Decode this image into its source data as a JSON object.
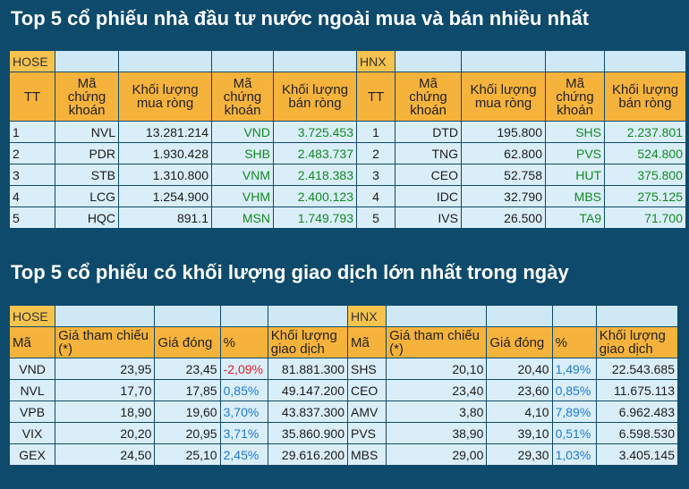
{
  "title1": "Top 5 cổ phiếu nhà đầu tư nước ngoài mua và bán nhiều nhất",
  "title2": "Top 5 cổ phiếu có khối lượng giao dịch lớn nhất trong ngày",
  "t1": {
    "exch_hose": "HOSE",
    "exch_hnx": "HNX",
    "headers": [
      "TT",
      "Mã chứng khoán",
      "Khối lượng mua ròng",
      "Mã chứng khoán",
      "Khối lượng bán ròng"
    ],
    "hose": [
      {
        "tt": "1",
        "buy_code": "NVL",
        "buy_vol": "13.281.214",
        "sell_code": "VND",
        "sell_vol": "3.725.453"
      },
      {
        "tt": "2",
        "buy_code": "PDR",
        "buy_vol": "1.930.428",
        "sell_code": "SHB",
        "sell_vol": "2.483.737"
      },
      {
        "tt": "3",
        "buy_code": "STB",
        "buy_vol": "1.310.800",
        "sell_code": "VNM",
        "sell_vol": "2.418.383"
      },
      {
        "tt": "4",
        "buy_code": "LCG",
        "buy_vol": "1.254.900",
        "sell_code": "VHM",
        "sell_vol": "2.400.123"
      },
      {
        "tt": "5",
        "buy_code": "HQC",
        "buy_vol": "891.1",
        "sell_code": "MSN",
        "sell_vol": "1.749.793"
      }
    ],
    "hnx": [
      {
        "tt": "1",
        "buy_code": "DTD",
        "buy_vol": "195.800",
        "sell_code": "SHS",
        "sell_vol": "2.237.801"
      },
      {
        "tt": "2",
        "buy_code": "TNG",
        "buy_vol": "62.800",
        "sell_code": "PVS",
        "sell_vol": "524.800"
      },
      {
        "tt": "3",
        "buy_code": "CEO",
        "buy_vol": "52.758",
        "sell_code": "HUT",
        "sell_vol": "375.800"
      },
      {
        "tt": "4",
        "buy_code": "IDC",
        "buy_vol": "32.790",
        "sell_code": "MBS",
        "sell_vol": "275.125"
      },
      {
        "tt": "5",
        "buy_code": "IVS",
        "buy_vol": "26.500",
        "sell_code": "TA9",
        "sell_vol": "71.700"
      }
    ]
  },
  "t2": {
    "exch_hose": "HOSE",
    "exch_hnx": "HNX",
    "headers": [
      "Mã",
      "Giá tham chiếu (*)",
      "Giá đóng",
      "%",
      "Khối lượng giao dịch"
    ],
    "hose": [
      {
        "code": "VND",
        "ref": "23,95",
        "close": "23,45",
        "pct": "-2,09%",
        "vol": "81.881.300"
      },
      {
        "code": "NVL",
        "ref": "17,70",
        "close": "17,85",
        "pct": "0,85%",
        "vol": "49.147.200"
      },
      {
        "code": "VPB",
        "ref": "18,90",
        "close": "19,60",
        "pct": "3,70%",
        "vol": "43.837.300"
      },
      {
        "code": "VIX",
        "ref": "20,20",
        "close": "20,95",
        "pct": "3,71%",
        "vol": "35.860.900"
      },
      {
        "code": "GEX",
        "ref": "24,50",
        "close": "25,10",
        "pct": "2,45%",
        "vol": "29.616.200"
      }
    ],
    "hnx": [
      {
        "code": "SHS",
        "ref": "20,10",
        "close": "20,40",
        "pct": "1,49%",
        "vol": "22.543.685"
      },
      {
        "code": "CEO",
        "ref": "23,40",
        "close": "23,60",
        "pct": "0,85%",
        "vol": "11.675.113"
      },
      {
        "code": "AMV",
        "ref": "3,80",
        "close": "4,10",
        "pct": "7,89%",
        "vol": "6.962.483"
      },
      {
        "code": "PVS",
        "ref": "38,90",
        "close": "39,10",
        "pct": "0,51%",
        "vol": "6.598.530"
      },
      {
        "code": "MBS",
        "ref": "29,00",
        "close": "29,30",
        "pct": "1,03%",
        "vol": "3.405.145"
      }
    ]
  }
}
